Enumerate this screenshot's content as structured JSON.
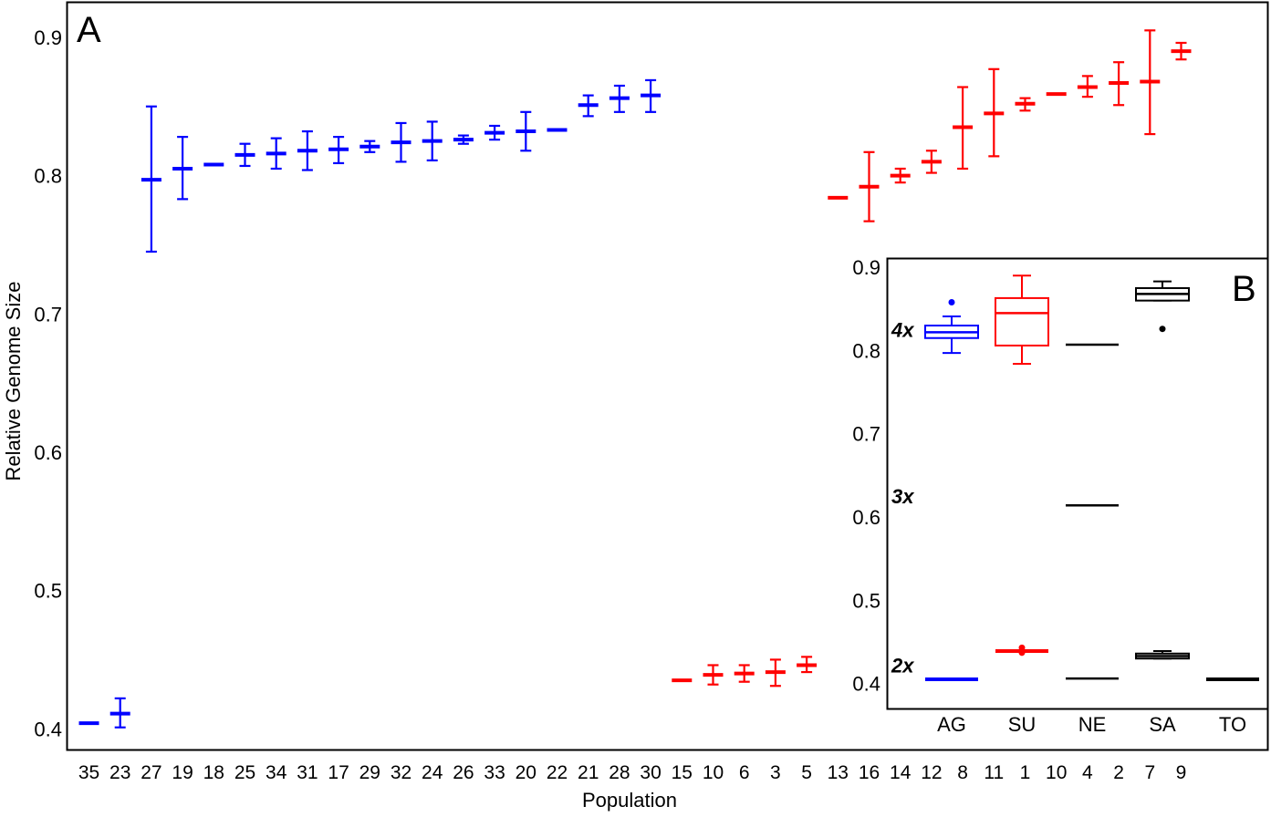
{
  "chart_data": [
    {
      "panel_label": "A",
      "type": "errorbar",
      "xlabel": "Population",
      "ylabel": "Relative Genome Size",
      "ylim": [
        0.385,
        0.925
      ],
      "yticks": [
        "0.4",
        "0.5",
        "0.6",
        "0.7",
        "0.8",
        "0.9"
      ],
      "ytick_values": [
        0.4,
        0.5,
        0.6,
        0.7,
        0.8,
        0.9
      ],
      "grid": false,
      "colors": {
        "blue": "#0000ff",
        "red": "#ff0000"
      },
      "categories": [
        "35",
        "23",
        "27",
        "19",
        "18",
        "25",
        "34",
        "31",
        "17",
        "29",
        "32",
        "24",
        "26",
        "33",
        "20",
        "22",
        "21",
        "28",
        "30",
        "15",
        "10",
        "6",
        "3",
        "5",
        "13",
        "16",
        "14",
        "12",
        "8",
        "11",
        "1",
        "10",
        "4",
        "2",
        "7",
        "9"
      ],
      "series": [
        {
          "color": "#0000ff",
          "points": [
            {
              "x": "35",
              "mean": 0.404,
              "low": 0.404,
              "high": 0.404
            },
            {
              "x": "23",
              "mean": 0.411,
              "low": 0.401,
              "high": 0.422
            },
            {
              "x": "27",
              "mean": 0.797,
              "low": 0.745,
              "high": 0.85
            },
            {
              "x": "19",
              "mean": 0.805,
              "low": 0.783,
              "high": 0.828
            },
            {
              "x": "18",
              "mean": 0.808,
              "low": 0.808,
              "high": 0.808
            },
            {
              "x": "25",
              "mean": 0.815,
              "low": 0.807,
              "high": 0.823
            },
            {
              "x": "34",
              "mean": 0.816,
              "low": 0.805,
              "high": 0.827
            },
            {
              "x": "31",
              "mean": 0.818,
              "low": 0.804,
              "high": 0.832
            },
            {
              "x": "17",
              "mean": 0.819,
              "low": 0.809,
              "high": 0.828
            },
            {
              "x": "29",
              "mean": 0.821,
              "low": 0.817,
              "high": 0.825
            },
            {
              "x": "32",
              "mean": 0.824,
              "low": 0.81,
              "high": 0.838
            },
            {
              "x": "24",
              "mean": 0.825,
              "low": 0.811,
              "high": 0.839
            },
            {
              "x": "26",
              "mean": 0.826,
              "low": 0.823,
              "high": 0.829
            },
            {
              "x": "33",
              "mean": 0.831,
              "low": 0.826,
              "high": 0.836
            },
            {
              "x": "20",
              "mean": 0.832,
              "low": 0.818,
              "high": 0.846
            },
            {
              "x": "22",
              "mean": 0.833,
              "low": 0.833,
              "high": 0.833
            },
            {
              "x": "21",
              "mean": 0.851,
              "low": 0.843,
              "high": 0.858
            },
            {
              "x": "28",
              "mean": 0.856,
              "low": 0.846,
              "high": 0.865
            },
            {
              "x": "30",
              "mean": 0.858,
              "low": 0.846,
              "high": 0.869
            }
          ]
        },
        {
          "color": "#ff0000",
          "points": [
            {
              "x": "15",
              "mean": 0.435,
              "low": 0.435,
              "high": 0.435
            },
            {
              "x": "10",
              "mean": 0.439,
              "low": 0.432,
              "high": 0.446
            },
            {
              "x": "6",
              "mean": 0.44,
              "low": 0.434,
              "high": 0.446
            },
            {
              "x": "3",
              "mean": 0.441,
              "low": 0.431,
              "high": 0.45
            },
            {
              "x": "5",
              "mean": 0.446,
              "low": 0.441,
              "high": 0.452
            },
            {
              "x": "13",
              "mean": 0.784,
              "low": 0.784,
              "high": 0.784
            },
            {
              "x": "16",
              "mean": 0.792,
              "low": 0.767,
              "high": 0.817
            },
            {
              "x": "14",
              "mean": 0.8,
              "low": 0.795,
              "high": 0.805
            },
            {
              "x": "12",
              "mean": 0.81,
              "low": 0.802,
              "high": 0.818
            },
            {
              "x": "8",
              "mean": 0.835,
              "low": 0.805,
              "high": 0.864
            },
            {
              "x": "11",
              "mean": 0.845,
              "low": 0.814,
              "high": 0.877
            },
            {
              "x": "1",
              "mean": 0.852,
              "low": 0.847,
              "high": 0.856
            },
            {
              "x": "10",
              "mean": 0.859,
              "low": 0.859,
              "high": 0.859
            },
            {
              "x": "4",
              "mean": 0.864,
              "low": 0.857,
              "high": 0.872
            },
            {
              "x": "2",
              "mean": 0.867,
              "low": 0.851,
              "high": 0.882
            },
            {
              "x": "7",
              "mean": 0.868,
              "low": 0.83,
              "high": 0.905
            },
            {
              "x": "9",
              "mean": 0.89,
              "low": 0.884,
              "high": 0.896
            }
          ]
        }
      ]
    },
    {
      "panel_label": "B",
      "type": "box",
      "ylim": [
        0.37,
        0.91
      ],
      "yticks": [
        "0.4",
        "0.5",
        "0.6",
        "0.7",
        "0.8",
        "0.9"
      ],
      "ytick_values": [
        0.4,
        0.5,
        0.6,
        0.7,
        0.8,
        0.9
      ],
      "categories": [
        "AG",
        "SU",
        "NE",
        "SA",
        "TO"
      ],
      "ploidy_labels": [
        {
          "text": "4x",
          "y": 0.825
        },
        {
          "text": "3x",
          "y": 0.625
        },
        {
          "text": "2x",
          "y": 0.422
        }
      ],
      "boxes": [
        {
          "category": "AG",
          "color": "#0000ff",
          "group": "4x",
          "min": 0.797,
          "q1": 0.815,
          "median": 0.822,
          "q3": 0.83,
          "max": 0.841,
          "outliers": [
            0.858
          ]
        },
        {
          "category": "AG",
          "color": "#0000ff",
          "group": "2x",
          "min": 0.404,
          "q1": 0.404,
          "median": 0.405,
          "q3": 0.406,
          "max": 0.406,
          "outliers": []
        },
        {
          "category": "SU",
          "color": "#ff0000",
          "group": "4x",
          "min": 0.784,
          "q1": 0.806,
          "median": 0.845,
          "q3": 0.863,
          "max": 0.89,
          "outliers": []
        },
        {
          "category": "SU",
          "color": "#ff0000",
          "group": "2x",
          "min": 0.438,
          "q1": 0.438,
          "median": 0.439,
          "q3": 0.44,
          "max": 0.44,
          "outliers": [
            0.437,
            0.443
          ]
        },
        {
          "category": "NE",
          "color": "#000000",
          "group": "4x",
          "min": 0.807,
          "q1": 0.807,
          "median": 0.807,
          "q3": 0.807,
          "max": 0.807,
          "outliers": []
        },
        {
          "category": "NE",
          "color": "#000000",
          "group": "3x",
          "min": 0.614,
          "q1": 0.614,
          "median": 0.614,
          "q3": 0.614,
          "max": 0.614,
          "outliers": []
        },
        {
          "category": "NE",
          "color": "#000000",
          "group": "2x",
          "min": 0.406,
          "q1": 0.406,
          "median": 0.406,
          "q3": 0.406,
          "max": 0.406,
          "outliers": []
        },
        {
          "category": "SA",
          "color": "#000000",
          "group": "4x",
          "min": 0.86,
          "q1": 0.86,
          "median": 0.868,
          "q3": 0.875,
          "max": 0.883,
          "outliers": [
            0.826
          ]
        },
        {
          "category": "SA",
          "color": "#000000",
          "group": "2x",
          "min": 0.43,
          "q1": 0.43,
          "median": 0.433,
          "q3": 0.436,
          "max": 0.439,
          "outliers": []
        },
        {
          "category": "TO",
          "color": "#000000",
          "group": "2x",
          "min": 0.403,
          "q1": 0.404,
          "median": 0.405,
          "q3": 0.406,
          "max": 0.407,
          "outliers": []
        }
      ]
    }
  ]
}
